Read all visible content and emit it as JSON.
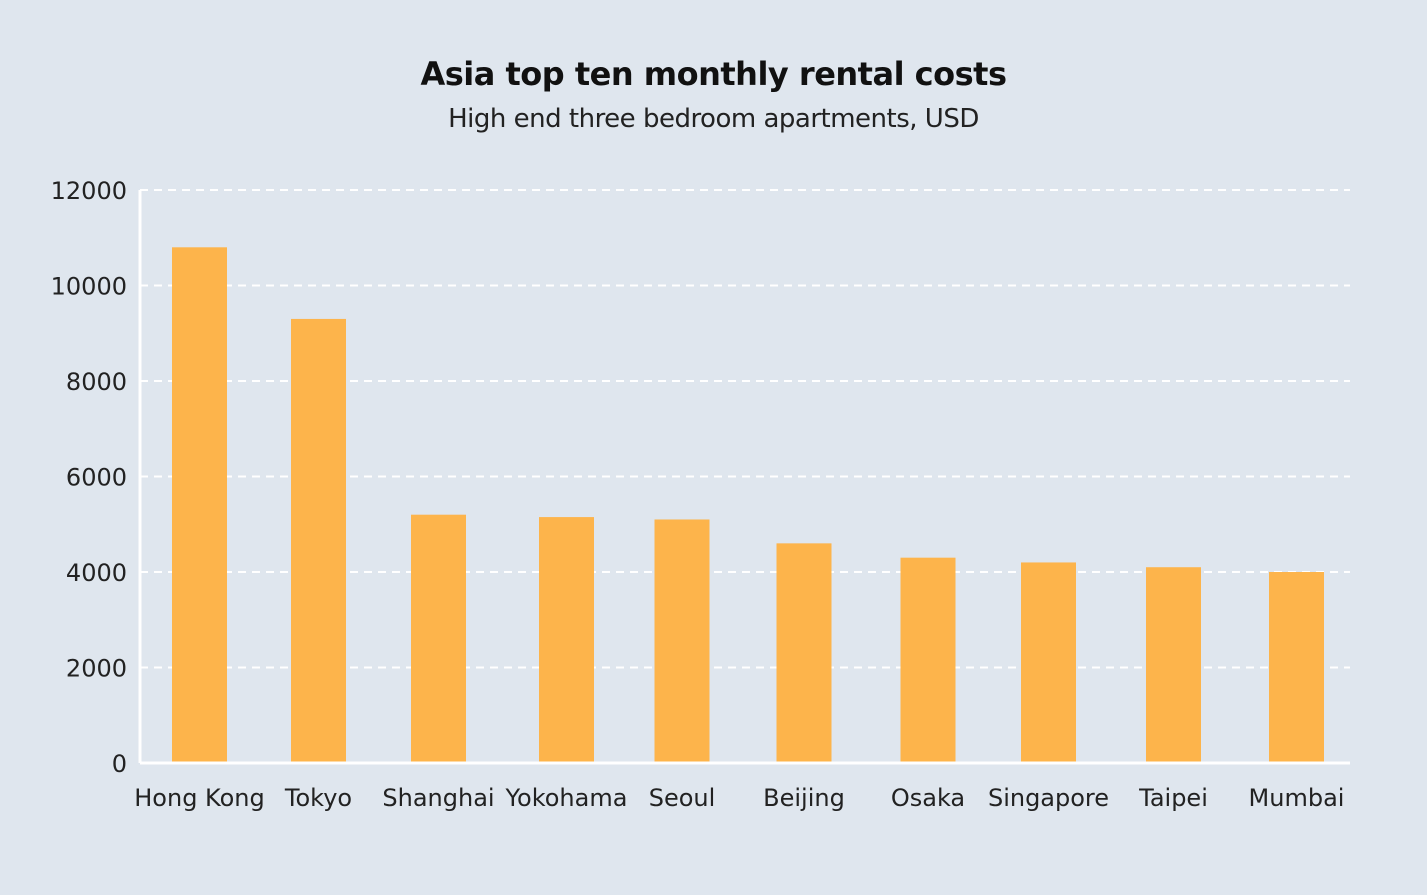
{
  "chart_data": {
    "type": "bar",
    "title": "Asia top ten monthly rental costs",
    "subtitle": "High end three bedroom apartments, USD",
    "xlabel": "",
    "ylabel": "",
    "categories": [
      "Hong Kong",
      "Tokyo",
      "Shanghai",
      "Yokohama",
      "Seoul",
      "Beijing",
      "Osaka",
      "Singapore",
      "Taipei",
      "Mumbai"
    ],
    "values": [
      10800,
      9300,
      5200,
      5150,
      5100,
      4600,
      4300,
      4200,
      4100,
      4000
    ],
    "ylim": [
      0,
      12000
    ],
    "yticks": [
      0,
      2000,
      4000,
      6000,
      8000,
      10000,
      12000
    ],
    "grid": true,
    "legend": "none",
    "colors": {
      "bar": "#fdb44b",
      "background": "#dfe6ee",
      "grid": "#ffffff"
    }
  }
}
